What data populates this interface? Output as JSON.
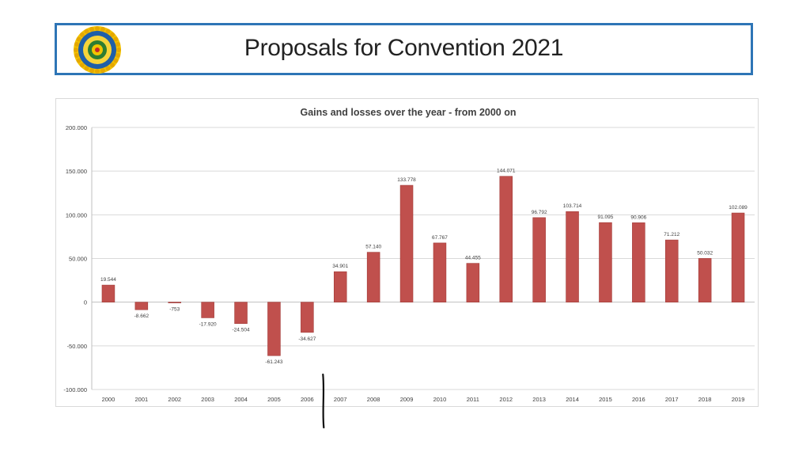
{
  "slide": {
    "title": "Proposals for Convention 2021",
    "logo": "club-emblem-logo"
  },
  "colors": {
    "header_border": "#2E75B6",
    "bar_fill": "#C0504D",
    "bar_stroke": "#A23B38",
    "grid": "#D9D9D9"
  },
  "chart_data": {
    "type": "bar",
    "title": "Gains and losses over the year - from 2000 on",
    "xlabel": "",
    "ylabel": "",
    "ylim": [
      -100000,
      200000
    ],
    "yticks": [
      200000,
      150000,
      100000,
      50000,
      0,
      -50000,
      -100000
    ],
    "ytick_labels": [
      "200.000",
      "150.000",
      "100.000",
      "50.000",
      "0",
      "-50.000",
      "-100.000"
    ],
    "grid": true,
    "legend": "none",
    "categories": [
      "2000",
      "2001",
      "2002",
      "2003",
      "2004",
      "2005",
      "2006",
      "2007",
      "2008",
      "2009",
      "2010",
      "2011",
      "2012",
      "2013",
      "2014",
      "2015",
      "2016",
      "2017",
      "2018",
      "2019"
    ],
    "values": [
      19544,
      -8662,
      -753,
      -17920,
      -24504,
      -61243,
      -34627,
      34901,
      57140,
      133778,
      67767,
      44455,
      144071,
      96792,
      103714,
      91095,
      90906,
      71212,
      50032,
      102089
    ],
    "data_labels": [
      "19.544",
      "-8.662",
      "-753",
      "-17.920",
      "-24.504",
      "-61.243",
      "-34.627",
      "34.901",
      "57.140",
      "133.778",
      "67.767",
      "44.455",
      "144.071",
      "96.792",
      "103.714",
      "91.095",
      "90.906",
      "71.212",
      "50.032",
      "102.089"
    ]
  }
}
